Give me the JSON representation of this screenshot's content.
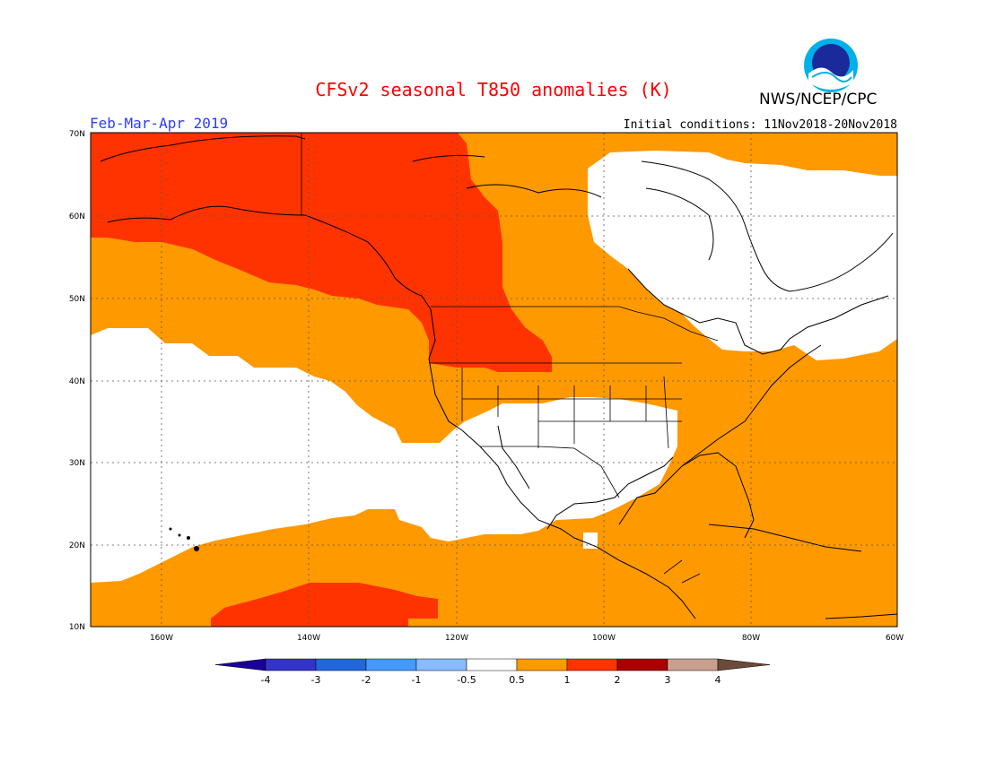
{
  "header": {
    "title": "CFSv2 seasonal T850 anomalies (K)",
    "agency": "NWS/NCEP/CPC",
    "logo_text": "NOAA",
    "period": "Feb-Mar-Apr 2019",
    "initial_conditions": "Initial conditions: 11Nov2018-20Nov2018"
  },
  "map": {
    "lon_range": [
      -171,
      -60
    ],
    "lat_range": [
      10,
      70
    ],
    "lat_labels": [
      "10N",
      "20N",
      "30N",
      "40N",
      "50N",
      "60N",
      "70N"
    ],
    "lon_labels": [
      "160W",
      "140W",
      "120W",
      "100W",
      "80W",
      "60W"
    ]
  },
  "colorbar": {
    "labels": [
      "-4",
      "-3",
      "-2",
      "-1",
      "-0.5",
      "0.5",
      "1",
      "2",
      "3",
      "4"
    ],
    "colors": [
      "#3333cc",
      "#2266dd",
      "#4499ff",
      "#88bbff",
      "#ffffff",
      "#ff9900",
      "#ff3300",
      "#aa0000",
      "#c8a090"
    ],
    "low_arrow_color": "#1a0099",
    "high_arrow_color": "#6b4a3a"
  },
  "colors": {
    "anomaly_0_5_to_1": "#ff9900",
    "anomaly_1_to_2": "#ff3300",
    "title": "#ff0000",
    "period": "#2a3cff"
  }
}
